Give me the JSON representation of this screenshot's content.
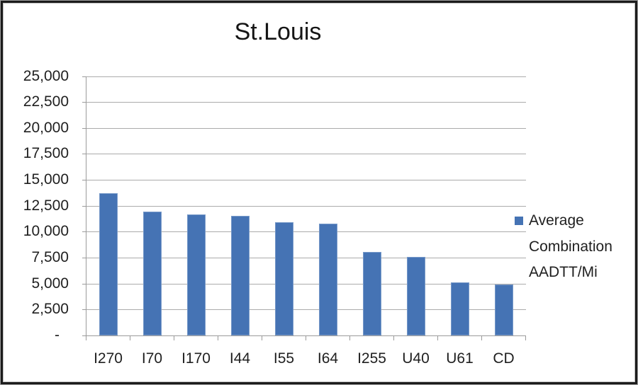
{
  "chart_data": {
    "type": "bar",
    "title": "St.Louis",
    "categories": [
      "I270",
      "I70",
      "I170",
      "I44",
      "I55",
      "I64",
      "I255",
      "U40",
      "U61",
      "CD"
    ],
    "series": [
      {
        "name": "Average Combination AADTT/Mi",
        "color": "#4573B4",
        "values": [
          13700,
          11950,
          11650,
          11550,
          10900,
          10800,
          8050,
          7600,
          5150,
          4900
        ]
      }
    ],
    "xlabel": "",
    "ylabel": "",
    "ylim": [
      0,
      25000
    ],
    "ytick_interval": 2500,
    "yticks": [
      {
        "value": 25000,
        "label": "25,000"
      },
      {
        "value": 22500,
        "label": "22,500"
      },
      {
        "value": 20000,
        "label": "20,000"
      },
      {
        "value": 17500,
        "label": "17,500"
      },
      {
        "value": 15000,
        "label": "15,000"
      },
      {
        "value": 12500,
        "label": "12,500"
      },
      {
        "value": 10000,
        "label": "10,000"
      },
      {
        "value": 7500,
        "label": "7,500"
      },
      {
        "value": 5000,
        "label": "5,000"
      },
      {
        "value": 2500,
        "label": "2,500"
      },
      {
        "value": 0,
        "label": "-"
      }
    ],
    "grid": true,
    "legend_position": "right",
    "colors": {
      "gridline": "#ABABAB",
      "axis": "#9B9B9B",
      "label_text": "#1F1F1F",
      "title_text": "#151515"
    }
  }
}
